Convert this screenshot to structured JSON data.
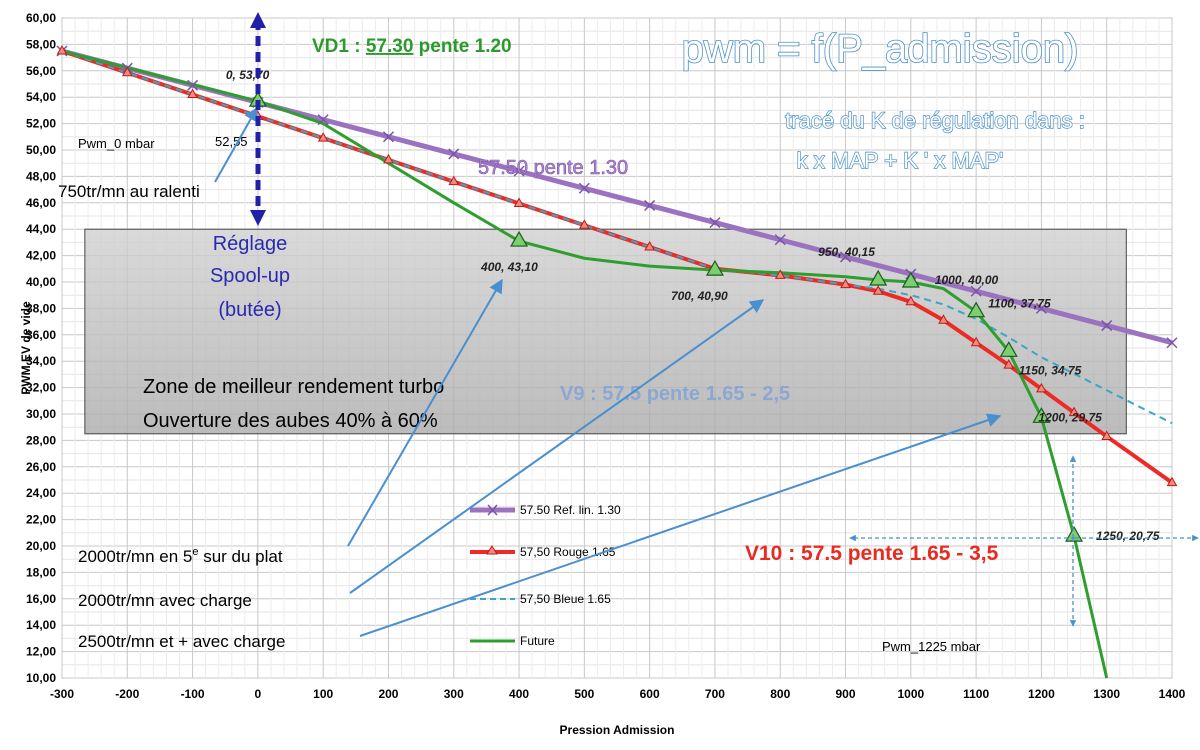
{
  "chart_data": {
    "type": "line",
    "title": "pwm = f(P_admission)",
    "subtitle_lines": [
      "tracé du K de régulation dans :",
      "k x MAP + K ' x MAP'"
    ],
    "xlabel": "Pression Admission",
    "ylabel": "PWM EV de vide",
    "xlim": [
      -300,
      1400
    ],
    "ylim": [
      10,
      60
    ],
    "x_ticks": [
      -300,
      -200,
      -100,
      0,
      100,
      200,
      300,
      400,
      500,
      600,
      700,
      800,
      900,
      1000,
      1100,
      1200,
      1300,
      1400
    ],
    "y_ticks": [
      "10,00",
      "12,00",
      "14,00",
      "16,00",
      "18,00",
      "20,00",
      "22,00",
      "24,00",
      "26,00",
      "28,00",
      "30,00",
      "32,00",
      "34,00",
      "36,00",
      "38,00",
      "40,00",
      "42,00",
      "44,00",
      "46,00",
      "48,00",
      "50,00",
      "52,00",
      "54,00",
      "56,00",
      "58,00",
      "60,00"
    ],
    "grid": true,
    "legend_position": "center-bottom",
    "series": [
      {
        "name": "57.50 Ref. lin. 1.30",
        "color": "#9b72c0",
        "marker": "x",
        "x": [
          -300,
          -200,
          -100,
          0,
          100,
          200,
          300,
          400,
          500,
          600,
          700,
          800,
          900,
          1000,
          1100,
          1200,
          1300,
          1400
        ],
        "y": [
          57.5,
          56.2,
          54.9,
          53.6,
          52.3,
          51.0,
          49.7,
          48.4,
          47.1,
          45.8,
          44.5,
          43.2,
          41.9,
          40.6,
          39.3,
          38.0,
          36.7,
          35.4
        ]
      },
      {
        "name": "57,50 Rouge 1.65",
        "color": "#ee2a24",
        "marker": "triangle",
        "x": [
          -300,
          -200,
          -100,
          0,
          100,
          200,
          300,
          400,
          500,
          600,
          700,
          800,
          900,
          950,
          1000,
          1050,
          1100,
          1150,
          1200,
          1250,
          1300,
          1400
        ],
        "y": [
          57.5,
          55.85,
          54.2,
          52.55,
          50.9,
          49.25,
          47.6,
          45.95,
          44.3,
          42.65,
          41.0,
          40.5,
          39.8,
          39.3,
          38.5,
          37.1,
          35.4,
          33.7,
          31.9,
          30.1,
          28.3,
          24.8
        ]
      },
      {
        "name": "57,50 Bleue  1.65",
        "color": "#3aa6c4",
        "dashed": true,
        "x": [
          -300,
          -200,
          -100,
          0,
          100,
          200,
          300,
          400,
          500,
          600,
          700,
          800,
          900,
          950,
          1000,
          1050,
          1100,
          1150,
          1200,
          1300,
          1400
        ],
        "y": [
          57.5,
          55.85,
          54.2,
          52.55,
          50.9,
          49.25,
          47.6,
          45.95,
          44.3,
          42.65,
          41.0,
          40.5,
          39.8,
          39.5,
          39.0,
          38.3,
          37.2,
          35.8,
          34.3,
          31.8,
          29.3
        ]
      },
      {
        "name": "Future",
        "color": "#2e9e2e",
        "marker": "triangle-markers-at-points",
        "x": [
          -300,
          0,
          100,
          200,
          300,
          400,
          500,
          600,
          700,
          800,
          900,
          950,
          1000,
          1050,
          1100,
          1150,
          1200,
          1250,
          1300
        ],
        "y": [
          57.5,
          53.7,
          52.0,
          49.0,
          46.0,
          43.1,
          41.8,
          41.2,
          40.9,
          40.7,
          40.4,
          40.15,
          40.0,
          39.5,
          37.75,
          34.75,
          29.75,
          20.75,
          10.0
        ],
        "marked_points": [
          [
            0,
            53.7
          ],
          [
            400,
            43.1
          ],
          [
            700,
            40.9
          ],
          [
            950,
            40.15
          ],
          [
            1000,
            40.0
          ],
          [
            1100,
            37.75
          ],
          [
            1150,
            34.75
          ],
          [
            1200,
            29.75
          ],
          [
            1250,
            20.75
          ]
        ]
      }
    ],
    "point_labels": [
      {
        "x": 0,
        "y": 53.7,
        "text": "0, 53,70"
      },
      {
        "x": 400,
        "y": 43.1,
        "text": "400, 43,10"
      },
      {
        "x": 700,
        "y": 40.9,
        "text": "700, 40,90"
      },
      {
        "x": 950,
        "y": 40.15,
        "text": "950, 40,15"
      },
      {
        "x": 1000,
        "y": 40.0,
        "text": "1000, 40,00"
      },
      {
        "x": 1100,
        "y": 37.75,
        "text": "1100, 37,75"
      },
      {
        "x": 1150,
        "y": 34.75,
        "text": "1150, 34,75"
      },
      {
        "x": 1200,
        "y": 29.75,
        "text": "1200, 29,75"
      },
      {
        "x": 1250,
        "y": 20.75,
        "text": "1250, 20,75"
      }
    ],
    "annotations": {
      "vd1_prefix": "VD1 : ",
      "vd1_value": "57.30",
      "vd1_suffix": " pente 1.20",
      "purple_label": "57.50 pente 1.30",
      "v9": "V9 : 57.5 pente 1.65 - 2,5",
      "v10": "V10 : 57.5 pente 1.65 - 3,5",
      "pwm0": "Pwm_0 mbar",
      "value_5255": "52,55",
      "ralenti": "750tr/mn au ralenti",
      "reglage_lines": [
        "Réglage",
        "Spool-up",
        "(butée)"
      ],
      "zone_lines": [
        "Zone de meilleur rendement turbo",
        "Ouverture des aubes 40% à 60%"
      ],
      "op1_prefix": "2000tr/mn en 5",
      "op1_sup": "e",
      "op1_suffix": " sur du plat",
      "op2": "2000tr/mn avec charge",
      "op3": "2500tr/mn et +  avec charge",
      "pwm1225": "Pwm_1225 mbar"
    },
    "zone_box": {
      "x": [
        -265,
        1330
      ],
      "y": [
        28.5,
        44.0
      ]
    }
  }
}
